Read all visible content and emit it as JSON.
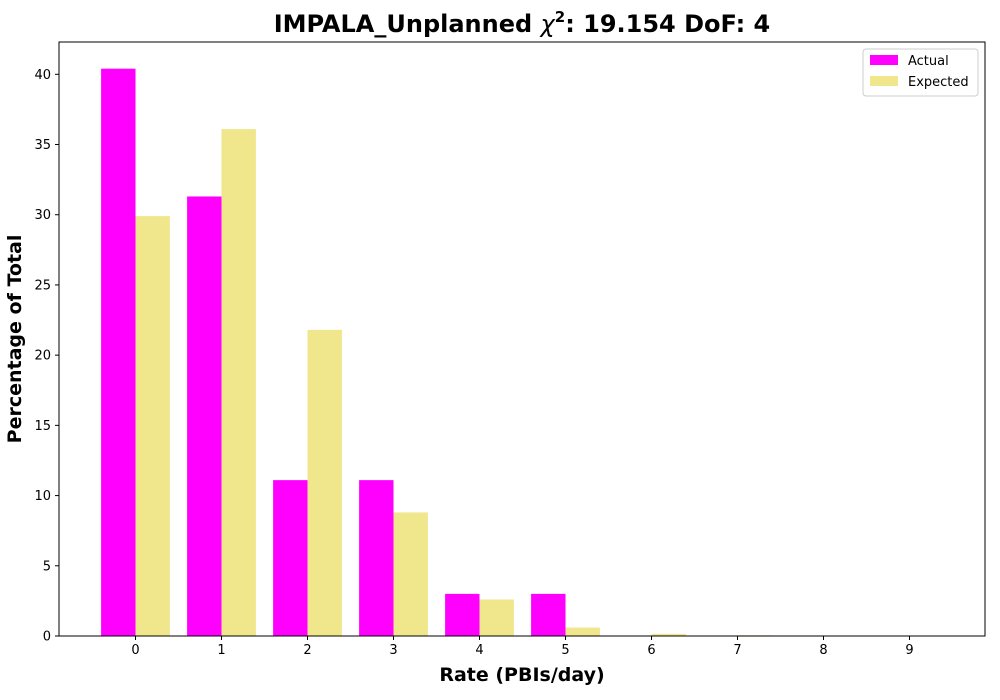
{
  "chart_data": {
    "type": "bar",
    "title_prefix": "IMPALA_Unplanned ",
    "title_symbol": "χ",
    "title_superscript": "2",
    "title_suffix": ": 19.154 DoF: 4",
    "xlabel": "Rate (PBIs/day)",
    "ylabel": "Percentage of Total",
    "categories": [
      "0",
      "1",
      "2",
      "3",
      "4",
      "5",
      "6",
      "7",
      "8",
      "9"
    ],
    "y_ticks": [
      0,
      5,
      10,
      15,
      20,
      25,
      30,
      35,
      40
    ],
    "ylim": [
      0,
      42.3
    ],
    "grid": false,
    "legend_position": "top-right",
    "series": [
      {
        "name": "Actual",
        "color": "#ff00ff",
        "values": [
          40.4,
          31.3,
          11.1,
          11.1,
          3.0,
          3.0,
          0,
          0,
          0,
          0
        ]
      },
      {
        "name": "Expected",
        "color": "#f0e68c",
        "values": [
          29.9,
          36.1,
          21.8,
          8.8,
          2.6,
          0.6,
          0.15,
          0.05,
          0,
          0
        ]
      }
    ]
  }
}
